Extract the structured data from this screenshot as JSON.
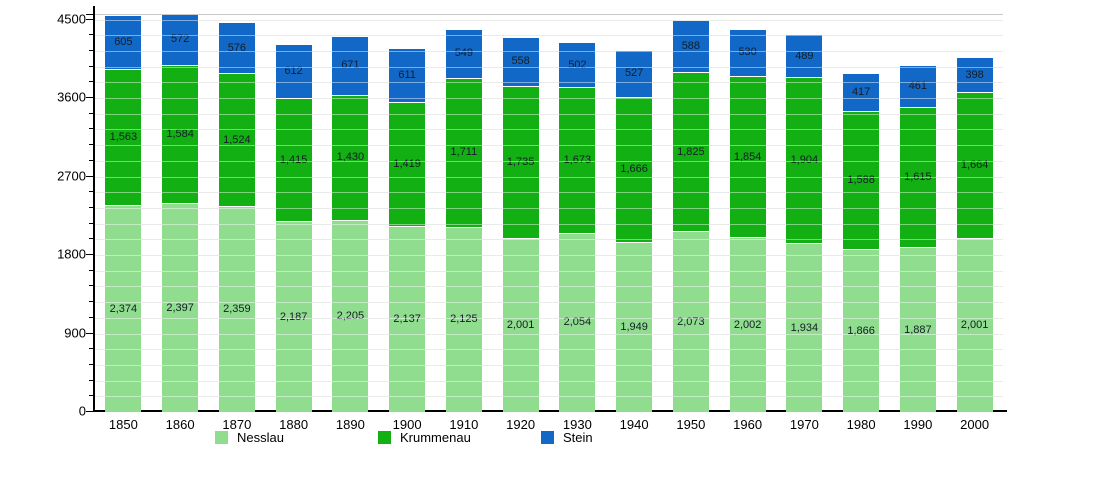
{
  "chart_data": {
    "type": "bar",
    "stacked": true,
    "title": "",
    "xlabel": "",
    "ylabel": "",
    "grid": true,
    "legend_position": "bottom",
    "categories": [
      "1850",
      "1860",
      "1870",
      "1880",
      "1890",
      "1900",
      "1910",
      "1920",
      "1930",
      "1940",
      "1950",
      "1960",
      "1970",
      "1980",
      "1990",
      "2000"
    ],
    "series": [
      {
        "name": "Nesslau",
        "color": "#90dd90",
        "values": [
          2374,
          2397,
          2359,
          2187,
          2205,
          2137,
          2125,
          2001,
          2054,
          1949,
          2073,
          2002,
          1934,
          1866,
          1887,
          2001
        ]
      },
      {
        "name": "Krummenau",
        "color": "#12b012",
        "values": [
          1563,
          1584,
          1524,
          1415,
          1430,
          1419,
          1711,
          1735,
          1673,
          1666,
          1825,
          1854,
          1904,
          1588,
          1615,
          1664
        ]
      },
      {
        "name": "Stein",
        "color": "#1268c6",
        "values": [
          605,
          572,
          576,
          612,
          671,
          611,
          549,
          558,
          502,
          527,
          588,
          530,
          489,
          417,
          461,
          398
        ]
      }
    ],
    "ylim": [
      0,
      4553
    ],
    "yticks": [
      0,
      900,
      1800,
      2700,
      3600,
      4500
    ],
    "minor_tick_step": 180,
    "value_label_color": "#141d26",
    "axis_color": "#000000",
    "gridline_color": "#d9d9d9",
    "legend_item_lefts": [
      215,
      378,
      541
    ]
  }
}
